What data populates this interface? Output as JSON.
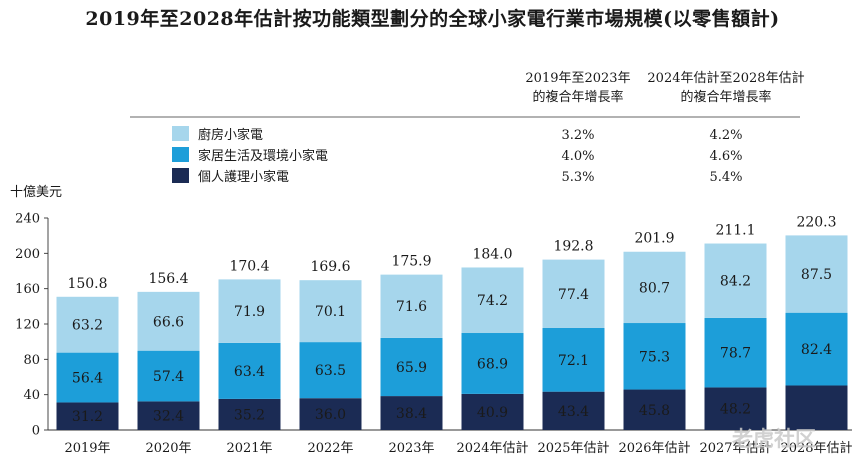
{
  "chart_data": {
    "type": "bar",
    "stacked": true,
    "title": "2019年至2028年估計按功能類型劃分的全球小家電行業市場規模(以零售額計)",
    "ylabel": "十億美元",
    "ylim": [
      0,
      240
    ],
    "yticks": [
      "0",
      "40",
      "80",
      "120",
      "160",
      "200",
      "240"
    ],
    "categories": [
      "2019年",
      "2020年",
      "2021年",
      "2022年",
      "2023年",
      "2024年估計",
      "2025年估計",
      "2026年估計",
      "2027年估計",
      "2028年估計"
    ],
    "series": [
      {
        "name": "個人護理小家電",
        "color": "#1b2b54",
        "values": [
          31.2,
          32.4,
          35.2,
          36.0,
          38.4,
          40.9,
          43.4,
          45.8,
          48.2,
          50.4
        ],
        "labels": [
          "31.2",
          "32.4",
          "35.2",
          "36.0",
          "38.4",
          "40.9",
          "43.4",
          "45.8",
          "48.2",
          ""
        ]
      },
      {
        "name": "家居生活及環境小家電",
        "color": "#1d9ed9",
        "values": [
          56.4,
          57.4,
          63.4,
          63.5,
          65.9,
          68.9,
          72.1,
          75.3,
          78.7,
          82.4
        ],
        "labels": [
          "56.4",
          "57.4",
          "63.4",
          "63.5",
          "65.9",
          "68.9",
          "72.1",
          "75.3",
          "78.7",
          "82.4"
        ]
      },
      {
        "name": "廚房小家電",
        "color": "#a6d6ec",
        "values": [
          63.2,
          66.6,
          71.9,
          70.1,
          71.6,
          74.2,
          77.4,
          80.7,
          84.2,
          87.5
        ],
        "labels": [
          "63.2",
          "66.6",
          "71.9",
          "70.1",
          "71.6",
          "74.2",
          "77.4",
          "80.7",
          "84.2",
          "87.5"
        ]
      }
    ],
    "totals": [
      "150.8",
      "156.4",
      "170.4",
      "169.6",
      "175.9",
      "184.0",
      "192.8",
      "201.9",
      "211.1",
      "220.3"
    ],
    "growth_table": {
      "headers": [
        [
          "2019年至2023年",
          "的複合年增長率"
        ],
        [
          "2024年估計至2028年估計",
          "的複合年增長率"
        ]
      ],
      "rows": [
        {
          "label": "廚房小家電",
          "color": "#a6d6ec",
          "cagr_2019_2023": "3.2%",
          "cagr_2024_2028": "4.2%"
        },
        {
          "label": "家居生活及環境小家電",
          "color": "#1d9ed9",
          "cagr_2019_2023": "4.0%",
          "cagr_2024_2028": "4.6%"
        },
        {
          "label": "個人護理小家電",
          "color": "#1b2b54",
          "cagr_2019_2023": "5.3%",
          "cagr_2024_2028": "5.4%"
        }
      ]
    }
  },
  "watermark": "老虎社区"
}
